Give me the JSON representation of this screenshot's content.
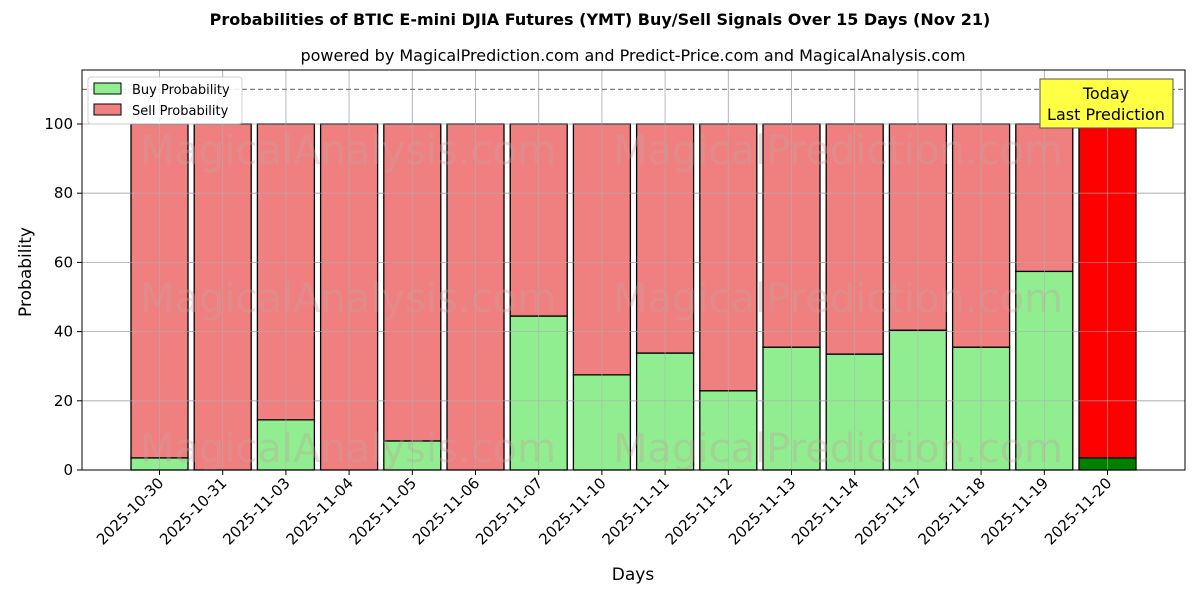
{
  "chart_data": {
    "type": "bar",
    "stacked": true,
    "title": "Probabilities of BTIC E-mini DJIA Futures (YMT) Buy/Sell Signals Over 15 Days (Nov 21)",
    "subtitle": "powered by MagicalPrediction.com and Predict-Price.com and MagicalAnalysis.com",
    "xlabel": "Days",
    "ylabel": "Probability",
    "ylim": [
      0,
      115
    ],
    "yticks": [
      0,
      20,
      40,
      60,
      80,
      100
    ],
    "grid": true,
    "legend_position": "upper left",
    "categories": [
      "2025-10-30",
      "2025-10-31",
      "2025-11-03",
      "2025-11-04",
      "2025-11-05",
      "2025-11-06",
      "2025-11-07",
      "2025-11-10",
      "2025-11-11",
      "2025-11-12",
      "2025-11-13",
      "2025-11-14",
      "2025-11-17",
      "2025-11-18",
      "2025-11-19",
      "2025-11-20"
    ],
    "series": [
      {
        "name": "Buy Probability",
        "color": "#90ee90",
        "values": [
          3.5,
          0,
          14.5,
          0,
          8.4,
          0,
          44.5,
          27.5,
          33.8,
          22.9,
          35.5,
          33.5,
          40.4,
          35.5,
          57.4,
          3.5
        ]
      },
      {
        "name": "Sell Probability",
        "color": "#f08080",
        "values": [
          96.5,
          100,
          85.5,
          100,
          91.6,
          100,
          55.5,
          72.5,
          66.2,
          77.1,
          64.5,
          66.5,
          59.6,
          64.5,
          42.6,
          96.5
        ]
      }
    ],
    "highlight": {
      "index": 15,
      "buy_color": "#008000",
      "sell_color": "#ff0000"
    },
    "reference_line": {
      "y": 110,
      "style": "dashed",
      "color": "#808080"
    },
    "annotation": {
      "text_line1": "Today",
      "text_line2": "Last Prediction",
      "bg": "#ffff44"
    },
    "watermarks": [
      "MagicalAnalysis.com",
      "MagicalPrediction.com"
    ]
  }
}
